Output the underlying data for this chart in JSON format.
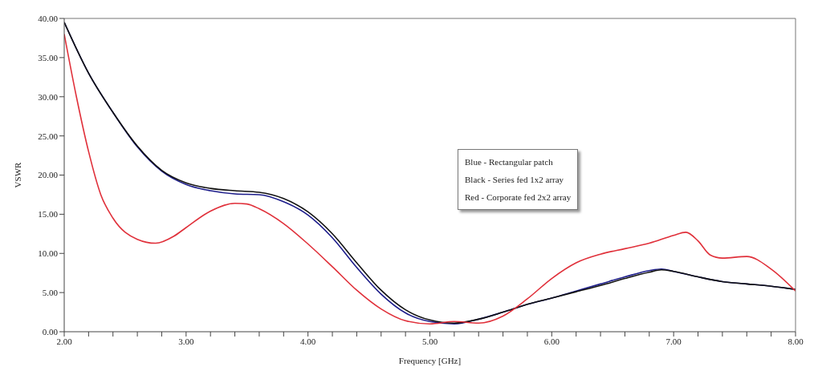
{
  "chart_data": {
    "type": "line",
    "xlabel": "Frequency [GHz]",
    "ylabel": "VSWR",
    "xlim": [
      2,
      8
    ],
    "ylim": [
      0,
      40
    ],
    "xticks": [
      {
        "value": 2,
        "label": "2.00"
      },
      {
        "value": 2.2,
        "label": null
      },
      {
        "value": 2.4,
        "label": null
      },
      {
        "value": 2.6,
        "label": null
      },
      {
        "value": 2.8,
        "label": null
      },
      {
        "value": 3,
        "label": "3.00"
      },
      {
        "value": 3.2,
        "label": null
      },
      {
        "value": 3.4,
        "label": null
      },
      {
        "value": 3.6,
        "label": null
      },
      {
        "value": 3.8,
        "label": null
      },
      {
        "value": 4,
        "label": "4.00"
      },
      {
        "value": 4.2,
        "label": null
      },
      {
        "value": 4.4,
        "label": null
      },
      {
        "value": 4.6,
        "label": null
      },
      {
        "value": 4.8,
        "label": null
      },
      {
        "value": 5,
        "label": "5.00"
      },
      {
        "value": 5.2,
        "label": null
      },
      {
        "value": 5.4,
        "label": null
      },
      {
        "value": 5.6,
        "label": null
      },
      {
        "value": 5.8,
        "label": null
      },
      {
        "value": 6,
        "label": "6.00"
      },
      {
        "value": 6.2,
        "label": null
      },
      {
        "value": 6.4,
        "label": null
      },
      {
        "value": 6.6,
        "label": null
      },
      {
        "value": 6.8,
        "label": null
      },
      {
        "value": 7,
        "label": "7.00"
      },
      {
        "value": 7.2,
        "label": null
      },
      {
        "value": 7.4,
        "label": null
      },
      {
        "value": 7.6,
        "label": null
      },
      {
        "value": 7.8,
        "label": null
      },
      {
        "value": 8,
        "label": "8.00"
      }
    ],
    "yticks": [
      {
        "value": 0,
        "label": "0.00"
      },
      {
        "value": 5,
        "label": "5.00"
      },
      {
        "value": 10,
        "label": "10.00"
      },
      {
        "value": 15,
        "label": "15.00"
      },
      {
        "value": 20,
        "label": "20.00"
      },
      {
        "value": 25,
        "label": "25.00"
      },
      {
        "value": 30,
        "label": "30.00"
      },
      {
        "value": 35,
        "label": "35.00"
      },
      {
        "value": 40,
        "label": "40.00"
      }
    ],
    "grid": false,
    "legend": false,
    "marker": "none",
    "line_style": "solid",
    "annotations": [
      "Blue - Rectangular patch",
      "Black - Series fed 1x2 array",
      "Red - Corporate fed 2x2 array"
    ],
    "series": [
      {
        "color": "#1c1c8a",
        "x": [
          2.0,
          2.2,
          2.4,
          2.6,
          2.8,
          3.0,
          3.2,
          3.4,
          3.6,
          3.8,
          4.0,
          4.2,
          4.4,
          4.6,
          4.8,
          5.0,
          5.2,
          5.4,
          5.6,
          5.8,
          6.0,
          6.2,
          6.4,
          6.6,
          6.8,
          6.9,
          7.0,
          7.2,
          7.4,
          7.6,
          7.8,
          8.0
        ],
        "values": [
          39.5,
          33,
          28,
          23.6,
          20.5,
          18.8,
          18.0,
          17.6,
          17.5,
          16.6,
          14.9,
          12.0,
          8.2,
          4.8,
          2.4,
          1.3,
          1.0,
          1.6,
          2.5,
          3.5,
          4.3,
          5.2,
          6.1,
          7.0,
          7.8,
          8.0,
          7.7,
          7.0,
          6.4,
          6.1,
          5.8,
          5.4
        ]
      },
      {
        "color": "#111111",
        "x": [
          2.0,
          2.2,
          2.4,
          2.6,
          2.8,
          3.0,
          3.2,
          3.4,
          3.6,
          3.8,
          4.0,
          4.2,
          4.4,
          4.6,
          4.8,
          5.0,
          5.2,
          5.4,
          5.6,
          5.8,
          6.0,
          6.2,
          6.4,
          6.6,
          6.8,
          6.9,
          7.0,
          7.2,
          7.4,
          7.6,
          7.8,
          8.0
        ],
        "values": [
          39.5,
          33,
          28,
          23.7,
          20.6,
          19.0,
          18.3,
          18.0,
          17.8,
          17.0,
          15.3,
          12.5,
          8.8,
          5.3,
          2.8,
          1.5,
          1.1,
          1.6,
          2.5,
          3.5,
          4.3,
          5.1,
          5.9,
          6.8,
          7.6,
          7.9,
          7.7,
          7.0,
          6.4,
          6.1,
          5.8,
          5.4
        ]
      },
      {
        "color": "#e0303a",
        "x": [
          2.0,
          2.1,
          2.2,
          2.3,
          2.4,
          2.6,
          2.75,
          2.9,
          3.0,
          3.2,
          3.4,
          3.5,
          3.6,
          3.8,
          4.0,
          4.2,
          4.4,
          4.6,
          4.8,
          5.0,
          5.2,
          5.4,
          5.6,
          5.8,
          6.0,
          6.2,
          6.4,
          6.6,
          6.8,
          7.0,
          7.1,
          7.2,
          7.3,
          7.4,
          7.6,
          7.8,
          8.0
        ],
        "values": [
          38,
          30,
          23,
          17.5,
          14.5,
          11.8,
          11.3,
          12.2,
          13.3,
          15.4,
          16.4,
          16.3,
          15.7,
          13.8,
          11.2,
          8.3,
          5.3,
          2.9,
          1.4,
          1.0,
          1.3,
          1.1,
          2.0,
          4.2,
          6.8,
          8.8,
          9.9,
          10.6,
          11.3,
          12.3,
          12.7,
          11.6,
          9.8,
          9.4,
          9.6,
          8.0,
          5.2
        ]
      }
    ]
  }
}
